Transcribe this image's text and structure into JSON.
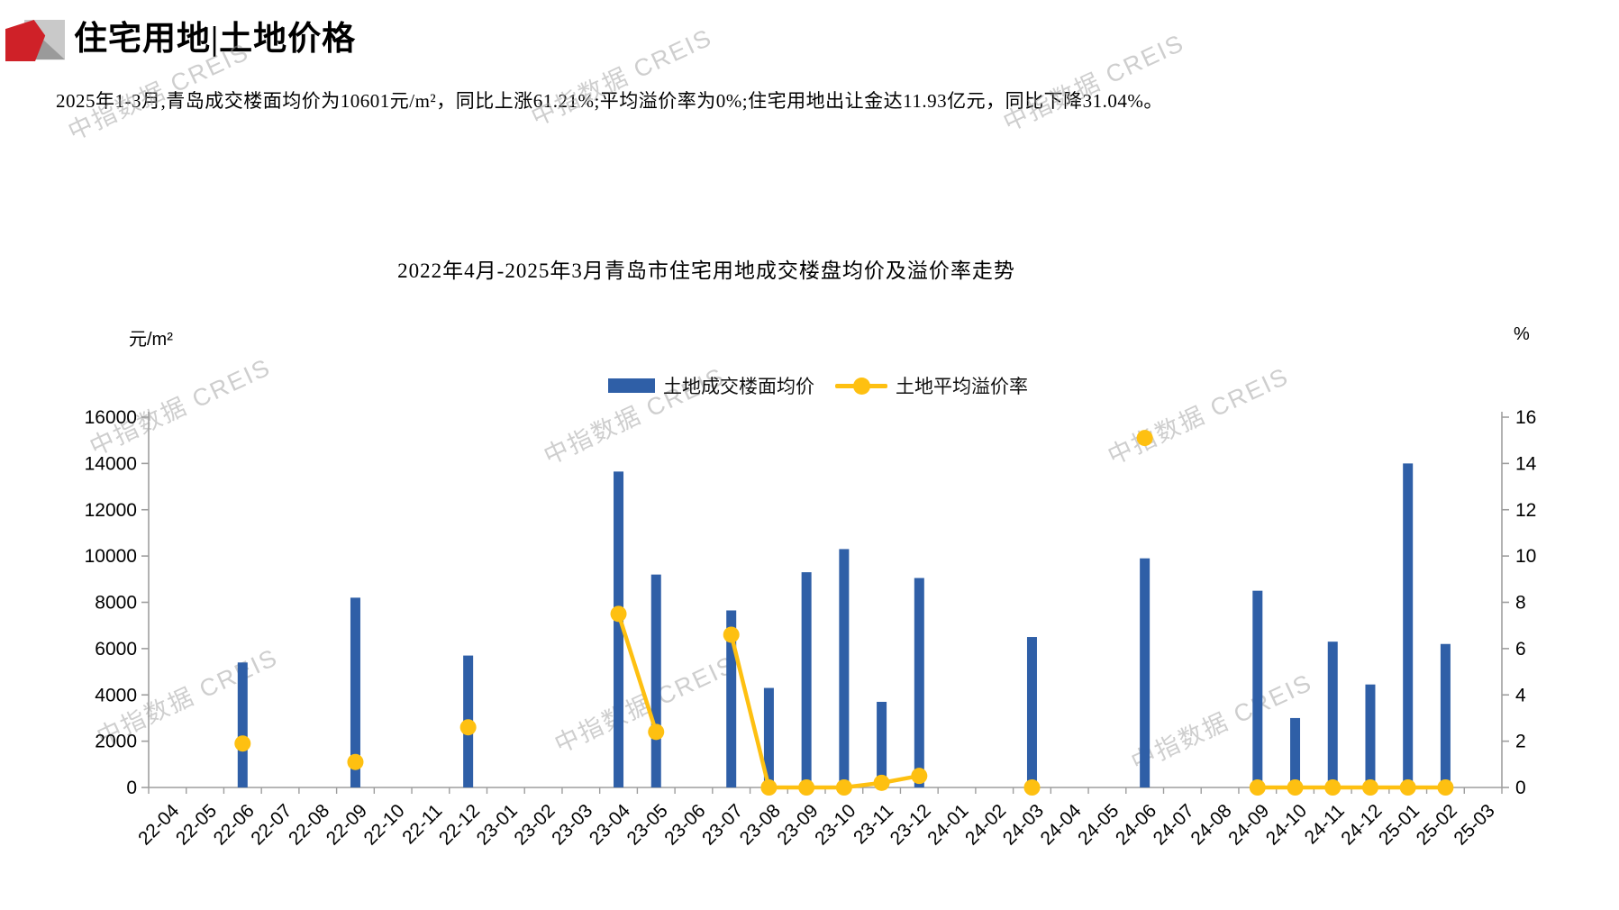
{
  "page": {
    "title": "住宅用地|土地价格",
    "summary": "2025年1-3月,青岛成交楼面均价为10601元/m²，同比上涨61.21%;平均溢价率为0%;住宅用地出让金达11.93亿元，同比下降31.04%。",
    "watermark": "中指数据 CREIS"
  },
  "chart_data": {
    "type": "bar+line",
    "title": "2022年4月-2025年3月青岛市住宅用地成交楼盘均价及溢价率走势",
    "legend_position": "top",
    "grid": "off",
    "left_axis": {
      "unit": "元/m²",
      "min": 0,
      "max": 16000,
      "step": 2000
    },
    "right_axis": {
      "unit": "%",
      "min": 0,
      "max": 16,
      "step": 2
    },
    "categories": [
      "22-04",
      "22-05",
      "22-06",
      "22-07",
      "22-08",
      "22-09",
      "22-10",
      "22-11",
      "22-12",
      "23-01",
      "23-02",
      "23-03",
      "23-04",
      "23-05",
      "23-06",
      "23-07",
      "23-08",
      "23-09",
      "23-10",
      "23-11",
      "23-12",
      "24-01",
      "24-02",
      "24-03",
      "24-04",
      "24-05",
      "24-06",
      "24-07",
      "24-08",
      "24-09",
      "24-10",
      "24-11",
      "24-12",
      "25-01",
      "25-02",
      "25-03"
    ],
    "series": [
      {
        "name": "土地成交楼面均价",
        "type": "bar",
        "axis": "left",
        "color": "#2f5fa7",
        "values": [
          null,
          null,
          5400,
          null,
          null,
          8200,
          null,
          null,
          5700,
          null,
          null,
          null,
          13650,
          9200,
          null,
          7650,
          4300,
          9300,
          10300,
          3700,
          9050,
          null,
          null,
          6500,
          null,
          null,
          9900,
          null,
          null,
          8500,
          3000,
          6300,
          4450,
          14000,
          6200,
          null
        ]
      },
      {
        "name": "土地平均溢价率",
        "type": "line",
        "axis": "right",
        "color": "#fec011",
        "values": [
          null,
          null,
          1.9,
          null,
          null,
          1.1,
          null,
          null,
          2.6,
          null,
          null,
          null,
          7.5,
          2.4,
          null,
          6.6,
          0,
          0,
          0,
          0.2,
          0.5,
          null,
          null,
          0,
          null,
          null,
          15.1,
          null,
          null,
          0,
          0,
          0,
          0,
          0,
          0,
          null
        ]
      }
    ],
    "axis_color": "#9e9e9e",
    "tick_label_color": "#000000"
  }
}
